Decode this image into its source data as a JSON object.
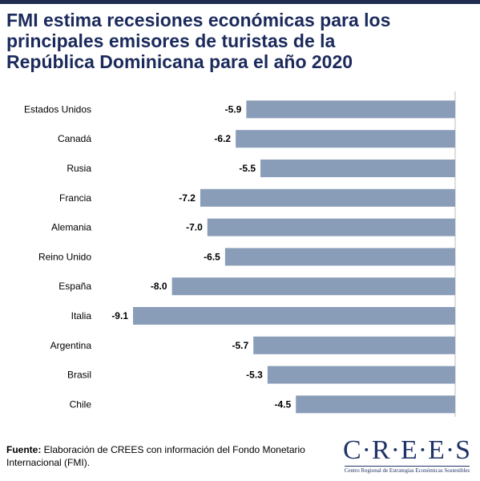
{
  "title_lines": [
    "FMI estima recesiones económicas para los",
    "principales emisores de turistas de la",
    "República Dominicana para el año 2020"
  ],
  "chart_data": {
    "type": "bar",
    "orientation": "horizontal",
    "categories": [
      "Estados Unidos",
      "Canadá",
      "Rusia",
      "Francia",
      "Alemania",
      "Reino Unido",
      "España",
      "Italia",
      "Argentina",
      "Brasil",
      "Chile"
    ],
    "values": [
      -5.9,
      -6.2,
      -5.5,
      -7.2,
      -7.0,
      -6.5,
      -8.0,
      -9.1,
      -5.7,
      -5.3,
      -4.5
    ],
    "value_labels": [
      "-5.9",
      "-6.2",
      "-5.5",
      "-7.2",
      "-7.0",
      "-6.5",
      "-8.0",
      "-9.1",
      "-5.7",
      "-5.3",
      "-4.5"
    ],
    "xlim": [
      -9.1,
      0
    ],
    "bar_color": "#8a9db8",
    "axis_color": "#bfbfbf",
    "grid": false,
    "legend": "none"
  },
  "source": {
    "label": "Fuente:",
    "text": " Elaboración de CREES con información del Fondo Monetario Internacional (FMI)."
  },
  "logo": {
    "wordmark": "C·R·E·E·S",
    "subtitle": "Centro Regional de Estrategias Económicas Sostenibles"
  },
  "colors": {
    "title": "#1b2a5c",
    "top_bar": "#1f2d4f",
    "logo": "#1f3466"
  }
}
